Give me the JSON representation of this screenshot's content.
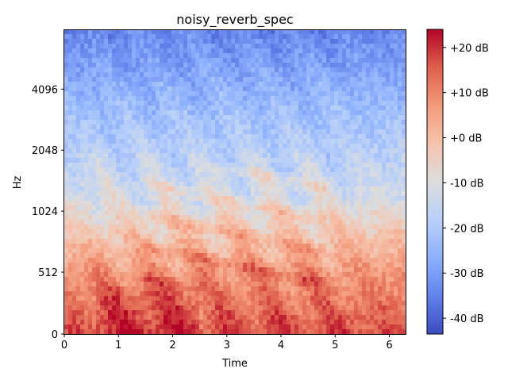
{
  "chart_data": {
    "type": "heatmap",
    "title": "noisy_reverb_spec",
    "xlabel": "Time",
    "ylabel": "Hz",
    "xlim": [
      0,
      6.3
    ],
    "x_ticks": [
      0,
      1,
      2,
      3,
      4,
      5,
      6
    ],
    "x_tick_labels": [
      "0",
      "1",
      "2",
      "3",
      "4",
      "5",
      "6"
    ],
    "y_scale": "log2-like (librosa 'log' axis)",
    "y_ticks": [
      0,
      512,
      1024,
      2048,
      4096
    ],
    "y_tick_labels": [
      "0",
      "512",
      "1024",
      "2048",
      "4096"
    ],
    "colorbar": {
      "colormap": "coolwarm",
      "range_db": [
        -43.5,
        24
      ],
      "ticks": [
        -40,
        -30,
        -20,
        -10,
        0,
        10,
        20
      ],
      "tick_labels": [
        "-40 dB",
        "-30 dB",
        "-20 dB",
        "-10 dB",
        "+0 dB",
        "+10 dB",
        "+20 dB"
      ]
    },
    "description": {
      "low_freq_band_db": "roughly +5 to +20 dB below ~500 Hz, strongest (≈ +20 dB) near 0.5–2.5 s",
      "mid_freq_band_db": "roughly -15 to +5 dB between 512 and 2048 Hz with harmonic striations around 1.5–4.5 s",
      "high_freq_band_db": "roughly -40 to -20 dB above 2048 Hz, darkest near top edge",
      "columns": 86,
      "rows": 64
    }
  }
}
